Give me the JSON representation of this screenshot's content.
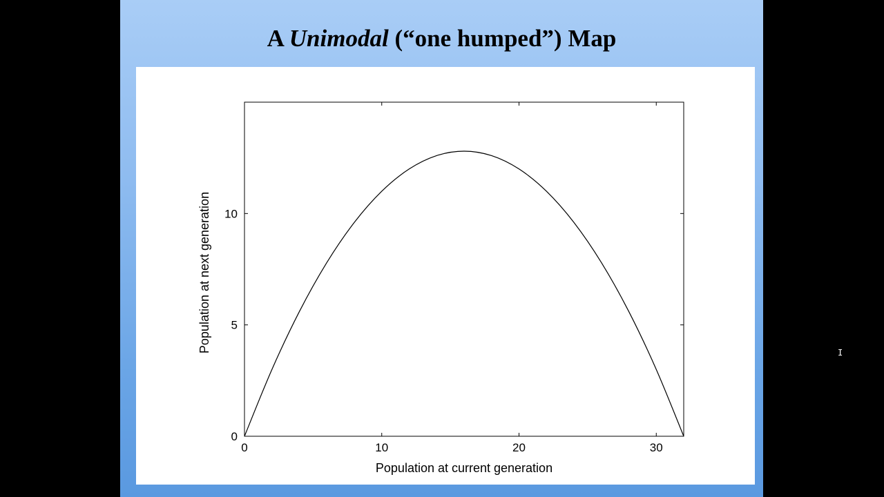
{
  "slide": {
    "title_prefix": "A ",
    "title_emphasis": "Unimodal",
    "title_suffix": " (“one humped”) Map"
  },
  "chart_data": {
    "type": "line",
    "title": "",
    "xlabel": "Population at current generation",
    "ylabel": "Population at next generation",
    "xlim": [
      0,
      32
    ],
    "ylim": [
      0,
      15
    ],
    "x_ticks": [
      0,
      10,
      20,
      30
    ],
    "y_ticks": [
      0,
      5,
      10
    ],
    "grid": false,
    "legend": "none",
    "line_color": "#000000",
    "series": [
      {
        "x": [
          0,
          2,
          4,
          6,
          8,
          10,
          12,
          14,
          16,
          18,
          20,
          22,
          24,
          26,
          28,
          30,
          32
        ],
        "y": [
          0,
          3.0,
          5.6,
          7.8,
          9.6,
          11.0,
          12.0,
          12.6,
          12.8,
          12.6,
          12.0,
          11.0,
          9.6,
          7.8,
          5.6,
          3.0,
          0
        ]
      }
    ]
  }
}
